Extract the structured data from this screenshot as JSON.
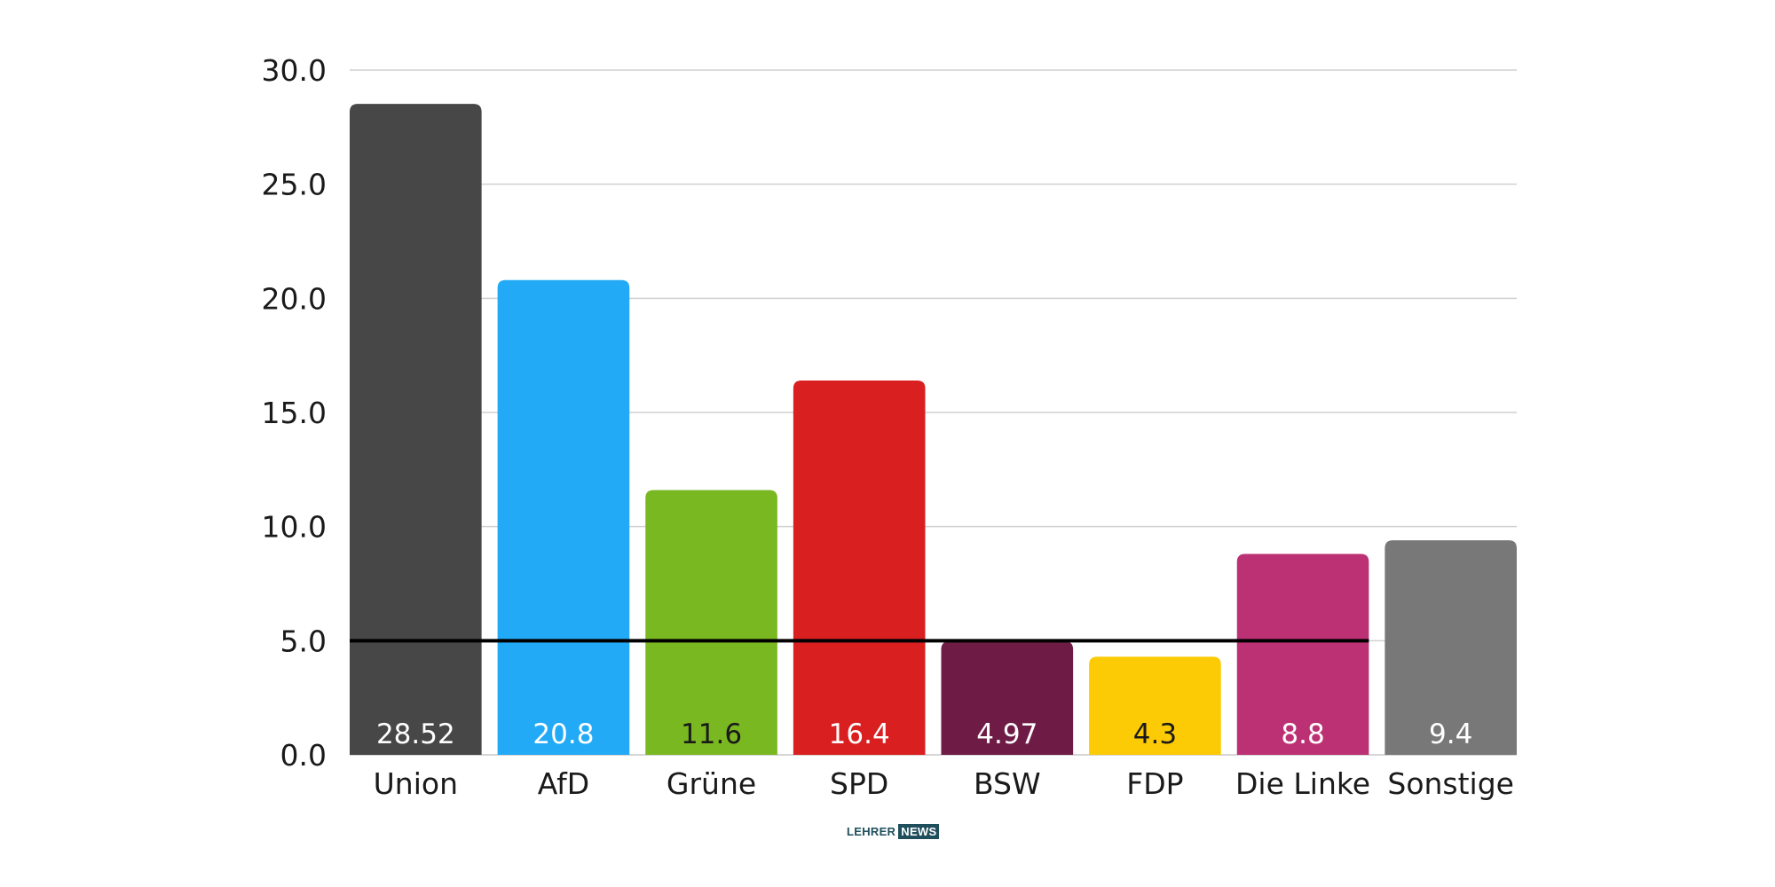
{
  "chart_data": {
    "type": "bar",
    "categories": [
      "Union",
      "AfD",
      "Grüne",
      "SPD",
      "BSW",
      "FDP",
      "Die Linke",
      "Sonstige"
    ],
    "values": [
      28.52,
      20.8,
      11.6,
      16.4,
      4.97,
      4.3,
      8.8,
      9.4
    ],
    "value_labels": [
      "28.52",
      "20.8",
      "11.6",
      "16.4",
      "4.97",
      "4.3",
      "8.8",
      "9.4"
    ],
    "colors": [
      "#484748",
      "#22aaf6",
      "#7ab821",
      "#d91f20",
      "#6e1c45",
      "#fdcb05",
      "#bc3174",
      "#787878"
    ],
    "value_label_colors": [
      "#ffffff",
      "#ffffff",
      "#1a1a1a",
      "#ffffff",
      "#ffffff",
      "#1a1a1a",
      "#ffffff",
      "#ffffff"
    ],
    "ylim": [
      0,
      30
    ],
    "yticks": [
      "0.0",
      "5.0",
      "10.0",
      "15.0",
      "20.0",
      "25.0",
      "30.0"
    ],
    "ytick_values": [
      0,
      5,
      10,
      15,
      20,
      25,
      30
    ],
    "threshold": 5,
    "grid": true,
    "legend": "none",
    "title": "",
    "xlabel": "",
    "ylabel": ""
  },
  "logo": {
    "part1": "LEHRER",
    "part2": "NEWS"
  }
}
